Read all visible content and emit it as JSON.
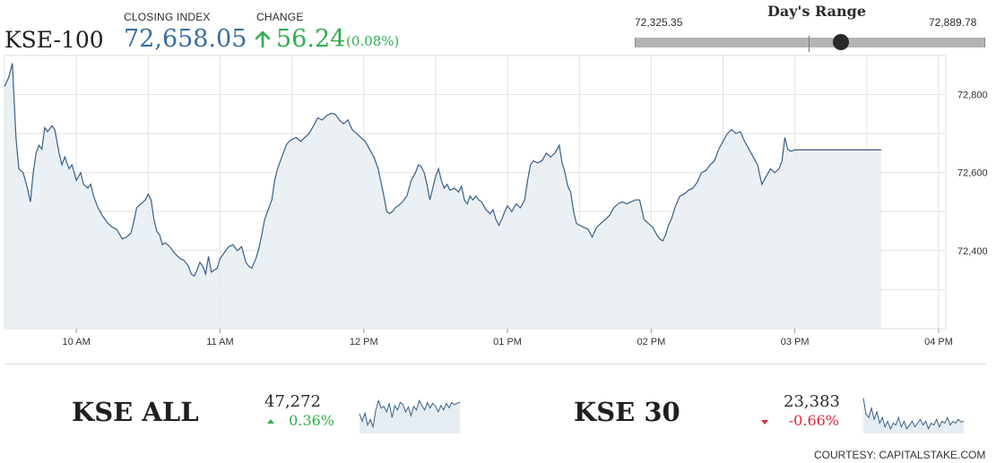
{
  "header": {
    "index_name": "KSE-100",
    "closing_label": "CLOSING INDEX",
    "closing_value": "72,658.05",
    "change_label": "CHANGE",
    "change_value": "56.24",
    "change_percent": "(0.08%)",
    "change_direction": "up",
    "up_color": "#2fae4e",
    "down_color": "#e0263a",
    "value_color": "#3a6e9e"
  },
  "days_range": {
    "title": "Day's Range",
    "low": "72,325.35",
    "high": "72,889.78",
    "low_value": 72325.35,
    "high_value": 72889.78,
    "current_value": 72658.05
  },
  "chart_data": {
    "type": "area",
    "title": "",
    "xlabel": "",
    "ylabel": "",
    "x_ticks": [
      "10 AM",
      "11 AM",
      "12 PM",
      "01 PM",
      "02 PM",
      "03 PM",
      "04 PM"
    ],
    "x_tick_hours": [
      10,
      11,
      12,
      13,
      14,
      15,
      16
    ],
    "xlim_hours": [
      9.5,
      16.05
    ],
    "y_ticks": [
      72400,
      72600,
      72800
    ],
    "y_tick_labels": [
      "72,400",
      "72,600",
      "72,800"
    ],
    "ylim": [
      72200,
      72900
    ],
    "grid": true,
    "line_color": "#3a5f86",
    "fill_color": "#e6edf2",
    "series": [
      {
        "points": [
          [
            9.5,
            72820
          ],
          [
            9.53,
            72845
          ],
          [
            9.555,
            72880
          ],
          [
            9.58,
            72690
          ],
          [
            9.6,
            72610
          ],
          [
            9.63,
            72600
          ],
          [
            9.66,
            72560
          ],
          [
            9.68,
            72525
          ],
          [
            9.7,
            72600
          ],
          [
            9.72,
            72650
          ],
          [
            9.74,
            72670
          ],
          [
            9.76,
            72660
          ],
          [
            9.78,
            72715
          ],
          [
            9.8,
            72705
          ],
          [
            9.83,
            72720
          ],
          [
            9.85,
            72710
          ],
          [
            9.88,
            72650
          ],
          [
            9.9,
            72620
          ],
          [
            9.92,
            72640
          ],
          [
            9.95,
            72610
          ],
          [
            9.97,
            72620
          ],
          [
            10.0,
            72580
          ],
          [
            10.03,
            72600
          ],
          [
            10.05,
            72570
          ],
          [
            10.08,
            72560
          ],
          [
            10.1,
            72570
          ],
          [
            10.12,
            72540
          ],
          [
            10.15,
            72510
          ],
          [
            10.18,
            72490
          ],
          [
            10.2,
            72480
          ],
          [
            10.22,
            72470
          ],
          [
            10.25,
            72460
          ],
          [
            10.28,
            72455
          ],
          [
            10.32,
            72430
          ],
          [
            10.35,
            72435
          ],
          [
            10.38,
            72445
          ],
          [
            10.4,
            72475
          ],
          [
            10.42,
            72510
          ],
          [
            10.45,
            72520
          ],
          [
            10.48,
            72530
          ],
          [
            10.5,
            72545
          ],
          [
            10.52,
            72530
          ],
          [
            10.54,
            72480
          ],
          [
            10.56,
            72450
          ],
          [
            10.58,
            72440
          ],
          [
            10.6,
            72415
          ],
          [
            10.62,
            72420
          ],
          [
            10.65,
            72410
          ],
          [
            10.68,
            72395
          ],
          [
            10.72,
            72380
          ],
          [
            10.75,
            72375
          ],
          [
            10.78,
            72360
          ],
          [
            10.8,
            72340
          ],
          [
            10.82,
            72335
          ],
          [
            10.84,
            72350
          ],
          [
            10.86,
            72370
          ],
          [
            10.88,
            72360
          ],
          [
            10.9,
            72340
          ],
          [
            10.92,
            72385
          ],
          [
            10.94,
            72345
          ],
          [
            10.96,
            72350
          ],
          [
            10.98,
            72355
          ],
          [
            11.0,
            72380
          ],
          [
            11.03,
            72395
          ],
          [
            11.06,
            72410
          ],
          [
            11.09,
            72415
          ],
          [
            11.12,
            72400
          ],
          [
            11.15,
            72410
          ],
          [
            11.18,
            72370
          ],
          [
            11.2,
            72360
          ],
          [
            11.22,
            72355
          ],
          [
            11.25,
            72380
          ],
          [
            11.27,
            72405
          ],
          [
            11.29,
            72440
          ],
          [
            11.31,
            72480
          ],
          [
            11.33,
            72500
          ],
          [
            11.36,
            72530
          ],
          [
            11.38,
            72580
          ],
          [
            11.4,
            72610
          ],
          [
            11.42,
            72630
          ],
          [
            11.44,
            72650
          ],
          [
            11.46,
            72670
          ],
          [
            11.48,
            72680
          ],
          [
            11.5,
            72685
          ],
          [
            11.53,
            72690
          ],
          [
            11.56,
            72680
          ],
          [
            11.59,
            72690
          ],
          [
            11.62,
            72700
          ],
          [
            11.65,
            72720
          ],
          [
            11.68,
            72740
          ],
          [
            11.71,
            72735
          ],
          [
            11.74,
            72745
          ],
          [
            11.77,
            72752
          ],
          [
            11.8,
            72750
          ],
          [
            11.83,
            72735
          ],
          [
            11.86,
            72725
          ],
          [
            11.89,
            72735
          ],
          [
            11.92,
            72710
          ],
          [
            11.95,
            72700
          ],
          [
            11.98,
            72690
          ],
          [
            12.01,
            72680
          ],
          [
            12.04,
            72660
          ],
          [
            12.07,
            72640
          ],
          [
            12.1,
            72610
          ],
          [
            12.12,
            72575
          ],
          [
            12.14,
            72540
          ],
          [
            12.16,
            72500
          ],
          [
            12.18,
            72495
          ],
          [
            12.2,
            72500
          ],
          [
            12.22,
            72510
          ],
          [
            12.24,
            72515
          ],
          [
            12.27,
            72525
          ],
          [
            12.3,
            72540
          ],
          [
            12.33,
            72580
          ],
          [
            12.36,
            72600
          ],
          [
            12.38,
            72620
          ],
          [
            12.4,
            72615
          ],
          [
            12.42,
            72600
          ],
          [
            12.44,
            72570
          ],
          [
            12.46,
            72530
          ],
          [
            12.48,
            72560
          ],
          [
            12.5,
            72590
          ],
          [
            12.52,
            72610
          ],
          [
            12.54,
            72580
          ],
          [
            12.56,
            72560
          ],
          [
            12.58,
            72570
          ],
          [
            12.6,
            72555
          ],
          [
            12.63,
            72560
          ],
          [
            12.66,
            72550
          ],
          [
            12.68,
            72565
          ],
          [
            12.7,
            72530
          ],
          [
            12.72,
            72520
          ],
          [
            12.74,
            72540
          ],
          [
            12.76,
            72530
          ],
          [
            12.78,
            72540
          ],
          [
            12.8,
            72530
          ],
          [
            12.82,
            72525
          ],
          [
            12.85,
            72505
          ],
          [
            12.88,
            72495
          ],
          [
            12.9,
            72505
          ],
          [
            12.92,
            72480
          ],
          [
            12.94,
            72465
          ],
          [
            12.96,
            72480
          ],
          [
            12.98,
            72500
          ],
          [
            13.0,
            72515
          ],
          [
            13.03,
            72500
          ],
          [
            13.06,
            72520
          ],
          [
            13.09,
            72510
          ],
          [
            13.12,
            72530
          ],
          [
            13.14,
            72580
          ],
          [
            13.16,
            72620
          ],
          [
            13.18,
            72630
          ],
          [
            13.21,
            72625
          ],
          [
            13.24,
            72630
          ],
          [
            13.27,
            72650
          ],
          [
            13.3,
            72640
          ],
          [
            13.33,
            72650
          ],
          [
            13.36,
            72670
          ],
          [
            13.38,
            72625
          ],
          [
            13.4,
            72600
          ],
          [
            13.42,
            72565
          ],
          [
            13.44,
            72550
          ],
          [
            13.46,
            72500
          ],
          [
            13.48,
            72470
          ],
          [
            13.5,
            72465
          ],
          [
            13.53,
            72460
          ],
          [
            13.56,
            72455
          ],
          [
            13.59,
            72435
          ],
          [
            13.62,
            72460
          ],
          [
            13.65,
            72470
          ],
          [
            13.68,
            72480
          ],
          [
            13.71,
            72490
          ],
          [
            13.74,
            72510
          ],
          [
            13.77,
            72520
          ],
          [
            13.8,
            72525
          ],
          [
            13.83,
            72520
          ],
          [
            13.86,
            72525
          ],
          [
            13.89,
            72530
          ],
          [
            13.92,
            72530
          ],
          [
            13.95,
            72480
          ],
          [
            13.98,
            72470
          ],
          [
            14.01,
            72460
          ],
          [
            14.04,
            72440
          ],
          [
            14.06,
            72430
          ],
          [
            14.08,
            72425
          ],
          [
            14.1,
            72440
          ],
          [
            14.12,
            72465
          ],
          [
            14.14,
            72480
          ],
          [
            14.17,
            72515
          ],
          [
            14.2,
            72540
          ],
          [
            14.23,
            72545
          ],
          [
            14.26,
            72555
          ],
          [
            14.29,
            72560
          ],
          [
            14.32,
            72575
          ],
          [
            14.35,
            72600
          ],
          [
            14.38,
            72605
          ],
          [
            14.41,
            72620
          ],
          [
            14.44,
            72630
          ],
          [
            14.47,
            72660
          ],
          [
            14.5,
            72680
          ],
          [
            14.53,
            72700
          ],
          [
            14.56,
            72710
          ],
          [
            14.59,
            72700
          ],
          [
            14.62,
            72705
          ],
          [
            14.65,
            72680
          ],
          [
            14.68,
            72660
          ],
          [
            14.71,
            72640
          ],
          [
            14.74,
            72620
          ],
          [
            14.77,
            72570
          ],
          [
            14.8,
            72590
          ],
          [
            14.83,
            72610
          ],
          [
            14.86,
            72600
          ],
          [
            14.89,
            72610
          ],
          [
            14.91,
            72630
          ],
          [
            14.93,
            72690
          ],
          [
            14.95,
            72660
          ],
          [
            14.97,
            72655
          ],
          [
            15.0,
            72658
          ],
          [
            15.3,
            72658
          ],
          [
            15.55,
            72658
          ],
          [
            15.6,
            72658
          ]
        ]
      }
    ]
  },
  "secondary_indices": [
    {
      "name": "KSE ALL",
      "value": "47,272",
      "change": "0.36%",
      "direction": "up",
      "sparkline": [
        0.5,
        0.3,
        0.52,
        0.2,
        0.35,
        0.15,
        0.6,
        0.85,
        0.65,
        0.7,
        0.55,
        0.78,
        0.4,
        0.72,
        0.6,
        0.8,
        0.75,
        0.55,
        0.68,
        0.45,
        0.7,
        0.6,
        0.85,
        0.72,
        0.6,
        0.8,
        0.65,
        0.78,
        0.7,
        0.55,
        0.72,
        0.6,
        0.78,
        0.66,
        0.8,
        0.74,
        0.78,
        0.8
      ]
    },
    {
      "name": "KSE 30",
      "value": "23,383",
      "change": "-0.66%",
      "direction": "down",
      "sparkline": [
        0.92,
        0.5,
        0.4,
        0.65,
        0.35,
        0.55,
        0.25,
        0.4,
        0.15,
        0.3,
        0.1,
        0.25,
        0.2,
        0.4,
        0.15,
        0.3,
        0.1,
        0.2,
        0.3,
        0.15,
        0.25,
        0.35,
        0.2,
        0.3,
        0.1,
        0.25,
        0.2,
        0.35,
        0.15,
        0.3,
        0.25,
        0.4,
        0.2,
        0.3,
        0.25,
        0.35,
        0.28,
        0.3
      ]
    }
  ],
  "footer": {
    "courtesy": "COURTESY: CAPITALSTAKE.COM"
  }
}
